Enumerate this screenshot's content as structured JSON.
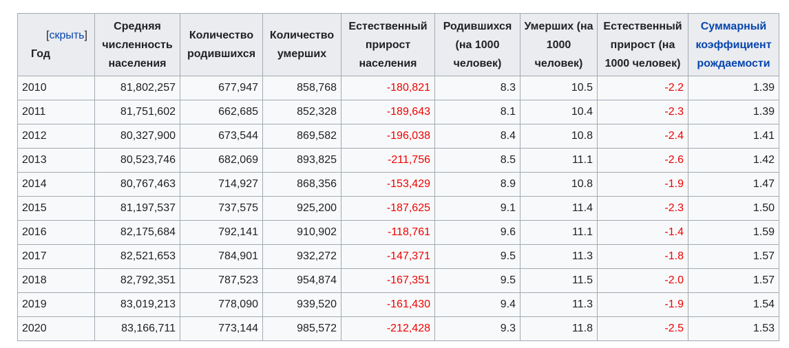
{
  "table": {
    "hide_link": "скрыть",
    "bracket_open": "[",
    "bracket_close": "]",
    "headers": {
      "year": "Год",
      "population": "Средняя численность населения",
      "births": "Количество родившихся",
      "deaths": "Количество умерших",
      "natural_growth": "Естественный прирост населения",
      "birth_rate": "Родившихся (на 1000 человек)",
      "death_rate": "Умерших (на 1000 человек)",
      "growth_rate": "Естественный прирост (на 1000 человек)",
      "tfr": "Суммарный коэффициент рождаемости"
    },
    "rows": [
      {
        "year": "2010",
        "population": "81,802,257",
        "births": "677,947",
        "deaths": "858,768",
        "natural_growth": "-180,821",
        "birth_rate": "8.3",
        "death_rate": "10.5",
        "growth_rate": "-2.2",
        "tfr": "1.39"
      },
      {
        "year": "2011",
        "population": "81,751,602",
        "births": "662,685",
        "deaths": "852,328",
        "natural_growth": "-189,643",
        "birth_rate": "8.1",
        "death_rate": "10.4",
        "growth_rate": "-2.3",
        "tfr": "1.39"
      },
      {
        "year": "2012",
        "population": "80,327,900",
        "births": "673,544",
        "deaths": "869,582",
        "natural_growth": "-196,038",
        "birth_rate": "8.4",
        "death_rate": "10.8",
        "growth_rate": "-2.4",
        "tfr": "1.41"
      },
      {
        "year": "2013",
        "population": "80,523,746",
        "births": "682,069",
        "deaths": "893,825",
        "natural_growth": "-211,756",
        "birth_rate": "8.5",
        "death_rate": "11.1",
        "growth_rate": "-2.6",
        "tfr": "1.42"
      },
      {
        "year": "2014",
        "population": "80,767,463",
        "births": "714,927",
        "deaths": "868,356",
        "natural_growth": "-153,429",
        "birth_rate": "8.9",
        "death_rate": "10.8",
        "growth_rate": "-1.9",
        "tfr": "1.47"
      },
      {
        "year": "2015",
        "population": "81,197,537",
        "births": "737,575",
        "deaths": "925,200",
        "natural_growth": "-187,625",
        "birth_rate": "9.1",
        "death_rate": "11.4",
        "growth_rate": "-2.3",
        "tfr": "1.50"
      },
      {
        "year": "2016",
        "population": "82,175,684",
        "births": "792,141",
        "deaths": "910,902",
        "natural_growth": "-118,761",
        "birth_rate": "9.6",
        "death_rate": "11.1",
        "growth_rate": "-1.4",
        "tfr": "1.59"
      },
      {
        "year": "2017",
        "population": "82,521,653",
        "births": "784,901",
        "deaths": "932,272",
        "natural_growth": "-147,371",
        "birth_rate": "9.5",
        "death_rate": "11.3",
        "growth_rate": "-1.8",
        "tfr": "1.57"
      },
      {
        "year": "2018",
        "population": "82,792,351",
        "births": "787,523",
        "deaths": "954,874",
        "natural_growth": "-167,351",
        "birth_rate": "9.5",
        "death_rate": "11.5",
        "growth_rate": "-2.0",
        "tfr": "1.57"
      },
      {
        "year": "2019",
        "population": "83,019,213",
        "births": "778,090",
        "deaths": "939,520",
        "natural_growth": "-161,430",
        "birth_rate": "9.4",
        "death_rate": "11.3",
        "growth_rate": "-1.9",
        "tfr": "1.54"
      },
      {
        "year": "2020",
        "population": "83,166,711",
        "births": "773,144",
        "deaths": "985,572",
        "natural_growth": "-212,428",
        "birth_rate": "9.3",
        "death_rate": "11.8",
        "growth_rate": "-2.5",
        "tfr": "1.53"
      }
    ]
  }
}
